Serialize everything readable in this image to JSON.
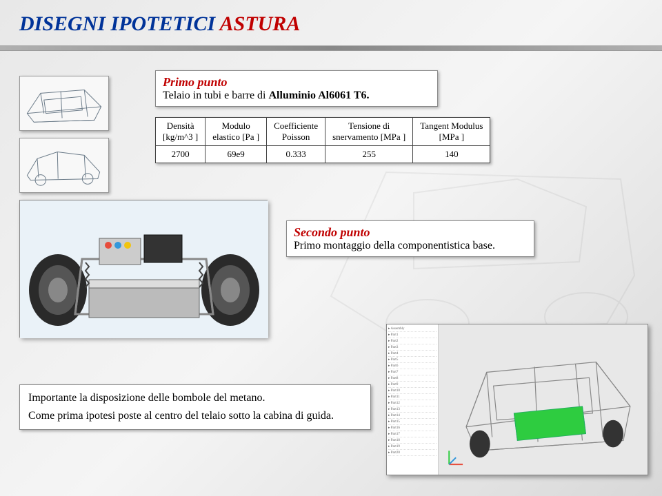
{
  "title": {
    "part_a": "DISEGNI IPOTETICI ",
    "part_b": "ASTURA"
  },
  "primo": {
    "heading": "Primo punto",
    "line_prefix": "Telaio in tubi e barre di ",
    "material": "Alluminio Al6061 T6."
  },
  "table": {
    "headers": [
      "Densità\n[kg/m^3 ]",
      "Modulo\nelastico [Pa ]",
      "Coefficiente\nPoisson",
      "Tensione di\nsnervamento [MPa ]",
      "Tangent Modulus\n[MPa ]"
    ],
    "row": [
      "2700",
      "69e9",
      "0.333",
      "255",
      "140"
    ]
  },
  "secondo": {
    "heading": "Secondo punto",
    "text": "Primo montaggio della componentistica base."
  },
  "bottom": {
    "p1": "Importante la disposizione delle bombole del metano.",
    "p2": "Come prima ipotesi poste al centro del telaio sotto la cabina di guida."
  },
  "colors": {
    "heading_red": "#c00000",
    "heading_blue": "#003399",
    "chassis_line": "#6a7a88",
    "wheel": "#2a2a2a",
    "battery": "#2ecc40"
  }
}
